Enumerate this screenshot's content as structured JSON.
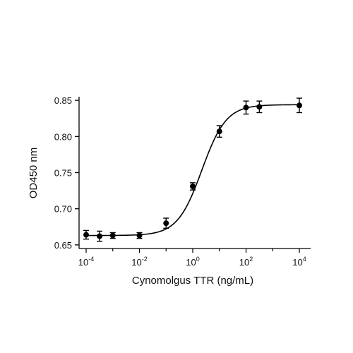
{
  "chart_data": {
    "type": "scatter",
    "xlabel": "Cynomolgus TTR (ng/mL)",
    "ylabel": "OD450 nm",
    "x_scale": "log10",
    "xlim": [
      0.0001,
      10000
    ],
    "ylim": [
      0.645,
      0.855
    ],
    "x_ticks": [
      {
        "base": "10",
        "exp": "-4"
      },
      {
        "base": "10",
        "exp": "-2"
      },
      {
        "base": "10",
        "exp": "0"
      },
      {
        "base": "10",
        "exp": "2"
      },
      {
        "base": "10",
        "exp": "4"
      }
    ],
    "y_ticks": [
      "0.65",
      "0.70",
      "0.75",
      "0.80",
      "0.85"
    ],
    "grid": false,
    "series": [
      {
        "color": "#000000",
        "points": [
          {
            "x": 0.0001,
            "y": 0.664,
            "err": 0.006
          },
          {
            "x": 0.00032,
            "y": 0.662,
            "err": 0.007
          },
          {
            "x": 0.001,
            "y": 0.663,
            "err": 0.004
          },
          {
            "x": 0.01,
            "y": 0.663,
            "err": 0.004
          },
          {
            "x": 0.1,
            "y": 0.68,
            "err": 0.007
          },
          {
            "x": 1,
            "y": 0.731,
            "err": 0.005
          },
          {
            "x": 10,
            "y": 0.807,
            "err": 0.008
          },
          {
            "x": 100,
            "y": 0.84,
            "err": 0.009
          },
          {
            "x": 316,
            "y": 0.841,
            "err": 0.008
          },
          {
            "x": 10000,
            "y": 0.843,
            "err": 0.01
          }
        ],
        "fit": {
          "model": "4PL",
          "bottom": 0.663,
          "top": 0.844,
          "ec50": 2.2,
          "hill": 0.95
        }
      }
    ]
  }
}
